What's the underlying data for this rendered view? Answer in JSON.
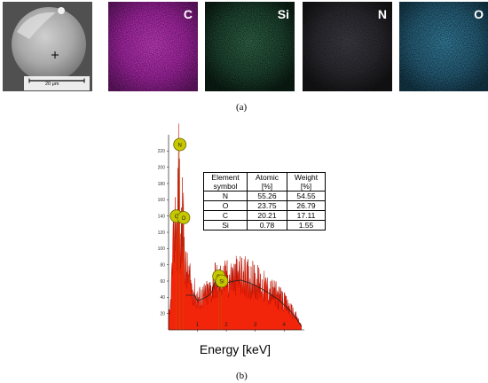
{
  "figure_a": {
    "sem": {
      "scale_bar_label": "20 μm"
    },
    "maps": [
      {
        "element": "C",
        "color": "#c030c0"
      },
      {
        "element": "Si",
        "color": "#4a9a6a"
      },
      {
        "element": "N",
        "color": "#5a5a66"
      },
      {
        "element": "O",
        "color": "#3d88aa"
      }
    ],
    "caption": "(a)"
  },
  "figure_b": {
    "caption": "(b)",
    "table": {
      "headers": [
        [
          "Element",
          "symbol"
        ],
        [
          "Atomic",
          "[%]"
        ],
        [
          "Weight",
          "[%]"
        ]
      ],
      "rows": [
        [
          "N",
          "55.26",
          "54.55"
        ],
        [
          "O",
          "23.75",
          "26.79"
        ],
        [
          "C",
          "20.21",
          "17.11"
        ],
        [
          "Si",
          "0.78",
          "1.55"
        ]
      ]
    }
  },
  "chart_data": {
    "type": "line",
    "xlabel": "Energy [keV]",
    "ylabel": "",
    "xlim": [
      0,
      4.7
    ],
    "ylim": [
      0,
      240
    ],
    "x_ticks": [
      1,
      2,
      3,
      4
    ],
    "y_ticks": [
      20,
      40,
      60,
      80,
      100,
      120,
      140,
      160,
      180,
      200,
      220
    ],
    "series": [
      {
        "x": [
          0.05,
          0.15,
          0.25,
          0.3,
          0.35,
          0.4,
          0.45,
          0.5,
          0.55,
          0.6,
          0.7,
          0.8,
          0.9,
          1.0,
          1.2,
          1.4,
          1.5,
          1.6,
          1.7,
          1.8,
          2.0,
          2.2,
          2.5,
          2.8,
          3.0,
          3.2,
          3.5,
          3.8,
          4.0,
          4.2,
          4.4,
          4.6
        ],
        "y": [
          20,
          100,
          150,
          125,
          235,
          90,
          140,
          150,
          100,
          80,
          70,
          55,
          50,
          42,
          45,
          50,
          55,
          70,
          62,
          66,
          68,
          70,
          72,
          68,
          64,
          60,
          52,
          44,
          36,
          28,
          18,
          5
        ]
      }
    ],
    "peak_labels": [
      {
        "label": "N",
        "x": 0.39
      },
      {
        "label": "C",
        "x": 0.27
      },
      {
        "label": "O",
        "x": 0.52
      },
      {
        "label": "Si",
        "x": 1.74
      },
      {
        "label": "Si",
        "x": 1.84
      }
    ]
  }
}
